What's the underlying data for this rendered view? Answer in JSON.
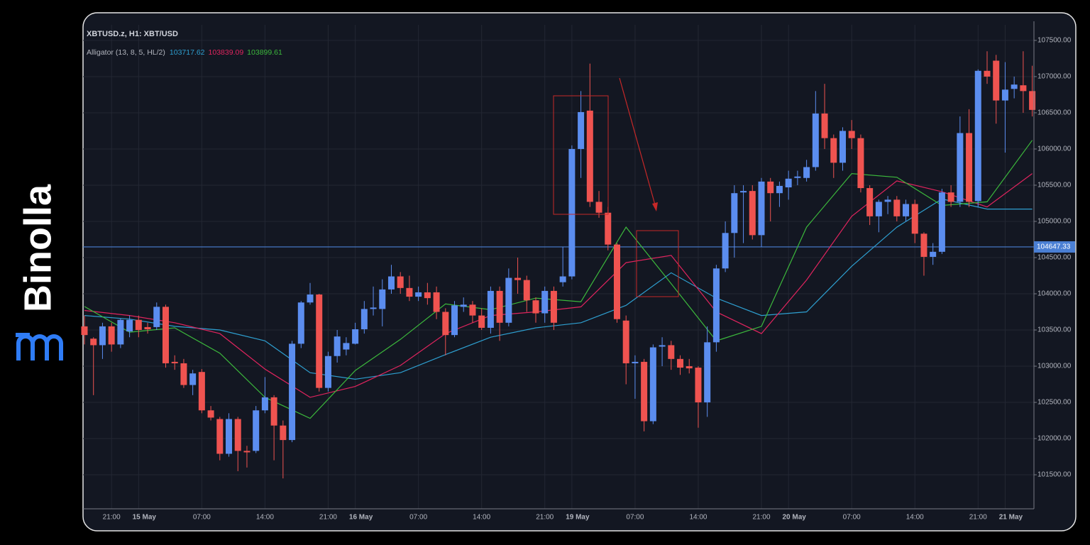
{
  "brand": "Binolla",
  "chart_data": {
    "type": "candlestick",
    "title": "XBTUSD.z, H1: XBT/USD",
    "indicator": "Alligator (13, 8, 5, HL/2)",
    "up_color": "#5b8def",
    "down_color": "#ef5350",
    "categories": [
      null,
      null,
      null,
      "21:00",
      null,
      null,
      "15 May",
      null,
      null,
      null,
      null,
      null,
      null,
      "07:00",
      null,
      null,
      null,
      null,
      null,
      null,
      "14:00",
      null,
      null,
      null,
      null,
      null,
      null,
      "21:00",
      null,
      null,
      "16 May",
      null,
      null,
      null,
      null,
      null,
      null,
      "07:00",
      null,
      null,
      null,
      null,
      null,
      null,
      "14:00",
      null,
      null,
      null,
      null,
      null,
      null,
      "21:00",
      null,
      null,
      "19 May",
      null,
      null,
      null,
      null,
      null,
      null,
      "07:00",
      null,
      null,
      null,
      null,
      null,
      null,
      "14:00",
      null,
      null,
      null,
      null,
      null,
      null,
      "21:00",
      null,
      null,
      "20 May",
      null,
      null,
      null,
      null,
      null,
      null,
      "07:00",
      null,
      null,
      null,
      null,
      null,
      null,
      "14:00",
      null,
      null,
      null,
      null,
      null,
      null,
      "21:00",
      null,
      null,
      "21 May",
      null,
      null,
      null
    ],
    "open": [
      103550,
      103380,
      103290,
      103550,
      103300,
      103480,
      103640,
      103540,
      103540,
      103820,
      103060,
      103040,
      102740,
      102920,
      102390,
      102270,
      101790,
      102270,
      101830,
      101830,
      102390,
      102570,
      102180,
      101980,
      103310,
      103880,
      103990,
      102700,
      103140,
      103230,
      103310,
      103510,
      103790,
      103790,
      104060,
      104240,
      104080,
      103960,
      104020,
      104020,
      103750,
      103430,
      103820,
      103850,
      103700,
      103530,
      104040,
      103600,
      104220,
      104190,
      103910,
      103730,
      104040,
      104160,
      104240,
      106000,
      106530,
      105270,
      105120,
      104680,
      103630,
      103040,
      103060,
      102240,
      103270,
      103290,
      103100,
      103000,
      102980,
      102500,
      103330,
      104350,
      104840,
      105400,
      105420,
      104810,
      105550,
      105390,
      105470,
      105600,
      105600,
      105750,
      106490,
      106150,
      105810,
      106250,
      106150,
      105460,
      105070,
      105270,
      105300,
      105070,
      105240,
      104830,
      104510,
      104580,
      105400,
      105270,
      106220,
      105280,
      107080,
      107220,
      106670,
      106830,
      106880,
      106800
    ],
    "high": [
      103700,
      103400,
      103600,
      103600,
      103660,
      103700,
      103700,
      103600,
      103880,
      103850,
      103150,
      103100,
      102950,
      102960,
      102450,
      102300,
      102350,
      102300,
      101900,
      102450,
      102850,
      102600,
      102250,
      103350,
      103900,
      104150,
      104000,
      103200,
      103500,
      103400,
      103600,
      103900,
      104100,
      104200,
      104400,
      104300,
      104250,
      104100,
      104150,
      104100,
      103800,
      103900,
      103950,
      103900,
      103800,
      104100,
      104100,
      104350,
      104500,
      104250,
      103950,
      104100,
      104100,
      104650,
      106050,
      106800,
      107180,
      105420,
      105200,
      104700,
      103700,
      103150,
      103100,
      103300,
      103400,
      103350,
      103150,
      103100,
      103000,
      103550,
      104400,
      105000,
      105500,
      105500,
      105500,
      105600,
      105600,
      105550,
      105700,
      105700,
      105850,
      106800,
      106900,
      106200,
      106300,
      106400,
      106200,
      105500,
      105300,
      105350,
      105350,
      105300,
      105300,
      104850,
      104700,
      105450,
      105500,
      106450,
      106550,
      107100,
      107350,
      107300,
      107200,
      107000,
      107350,
      107150
    ],
    "low": [
      103300,
      102600,
      103100,
      103200,
      103250,
      103400,
      103400,
      103450,
      103500,
      102980,
      102950,
      102700,
      102600,
      102350,
      102250,
      101700,
      101750,
      101550,
      101600,
      101800,
      102350,
      101700,
      101450,
      101950,
      103250,
      103850,
      102650,
      102650,
      103050,
      103150,
      103300,
      103450,
      103700,
      103550,
      104000,
      104000,
      103900,
      103900,
      103850,
      103650,
      103150,
      103400,
      103750,
      103600,
      103500,
      103450,
      103350,
      103550,
      104000,
      103750,
      103600,
      103600,
      103500,
      104100,
      104200,
      105600,
      105200,
      105050,
      104600,
      103600,
      102750,
      102550,
      102100,
      102200,
      103000,
      102950,
      102880,
      102900,
      102150,
      102300,
      103200,
      104300,
      104500,
      104700,
      104750,
      104650,
      105000,
      105200,
      105300,
      105500,
      105550,
      105700,
      106000,
      105600,
      105700,
      106000,
      105400,
      104950,
      104850,
      105100,
      105000,
      105000,
      104700,
      104250,
      104400,
      104550,
      105200,
      105200,
      105200,
      105200,
      106900,
      106350,
      105950,
      106700,
      106500,
      106450
    ],
    "close": [
      103430,
      103290,
      103550,
      103300,
      103640,
      103640,
      103500,
      103510,
      103820,
      103040,
      103040,
      102740,
      102900,
      102390,
      102290,
      101790,
      102270,
      101830,
      101810,
      102390,
      102570,
      102180,
      101980,
      103310,
      103880,
      103990,
      102700,
      103140,
      103410,
      103320,
      103510,
      103790,
      103810,
      104060,
      104240,
      104080,
      103960,
      104020,
      103940,
      103750,
      103430,
      103840,
      103850,
      103700,
      103530,
      104040,
      103600,
      104220,
      104190,
      103910,
      103730,
      104040,
      103600,
      104240,
      106000,
      106510,
      105270,
      105120,
      104680,
      103650,
      103040,
      103060,
      102240,
      103260,
      103290,
      103100,
      102980,
      102970,
      102500,
      103330,
      104350,
      104840,
      105390,
      105420,
      104810,
      105550,
      105390,
      105490,
      105590,
      105620,
      105750,
      106490,
      106150,
      105810,
      106250,
      106150,
      105460,
      105070,
      105270,
      105300,
      105070,
      105240,
      104830,
      104510,
      104580,
      105400,
      105270,
      106220,
      105270,
      107080,
      107000,
      106670,
      106820,
      106890,
      106800,
      106540
    ],
    "series": [
      {
        "color": "#2e9fd0",
        "legend_value": "103717.62",
        "x": [
          0,
          5,
          10,
          15,
          20,
          25,
          30,
          35,
          40,
          45,
          50,
          55,
          60,
          65,
          70,
          75,
          80,
          85,
          90,
          95,
          100,
          105
        ],
        "values": [
          103700,
          103650,
          103550,
          103500,
          103350,
          102910,
          102820,
          102910,
          103160,
          103400,
          103530,
          103600,
          103840,
          104290,
          103940,
          103700,
          103750,
          104380,
          104920,
          105310,
          105170,
          105170
        ]
      },
      {
        "color": "#e0245e",
        "legend_value": "103839.09",
        "x": [
          0,
          5,
          10,
          15,
          20,
          25,
          30,
          35,
          40,
          45,
          50,
          55,
          60,
          65,
          70,
          75,
          80,
          85,
          90,
          95,
          100,
          105
        ],
        "values": [
          103770,
          103700,
          103600,
          103450,
          102960,
          102570,
          102720,
          103010,
          103450,
          103700,
          103750,
          103820,
          104430,
          104530,
          103750,
          103450,
          104190,
          105070,
          105560,
          105410,
          105200,
          105660
        ]
      },
      {
        "color": "#3cb83c",
        "legend_value": "103899.61",
        "x": [
          0,
          5,
          10,
          15,
          20,
          25,
          30,
          35,
          40,
          45,
          50,
          55,
          60,
          65,
          70,
          75,
          80,
          85,
          90,
          95,
          100,
          105
        ],
        "values": [
          103825,
          103470,
          103530,
          103180,
          102570,
          102280,
          102940,
          103370,
          103860,
          103780,
          103940,
          103890,
          104920,
          104140,
          103350,
          103550,
          104920,
          105660,
          105610,
          105220,
          105270,
          106120
        ]
      }
    ],
    "price_line": {
      "value": 104647.33,
      "label": "104647.33",
      "color": "#4a7fd4"
    },
    "ylim": [
      101030,
      107715
    ],
    "yticks": [
      {
        "value": 101500,
        "label": "101500.00"
      },
      {
        "value": 102000,
        "label": "102000.00"
      },
      {
        "value": 102500,
        "label": "102500.00"
      },
      {
        "value": 103000,
        "label": "103000.00"
      },
      {
        "value": 103500,
        "label": "103500.00"
      },
      {
        "value": 104000,
        "label": "104000.00"
      },
      {
        "value": 104500,
        "label": "104500.00"
      },
      {
        "value": 105000,
        "label": "105000.00"
      },
      {
        "value": 105500,
        "label": "105500.00"
      },
      {
        "value": 106000,
        "label": "106000.00"
      },
      {
        "value": 106500,
        "label": "106500.00"
      },
      {
        "value": 107000,
        "label": "107000.00"
      },
      {
        "value": 107500,
        "label": "107500.00"
      }
    ],
    "grid": true
  }
}
